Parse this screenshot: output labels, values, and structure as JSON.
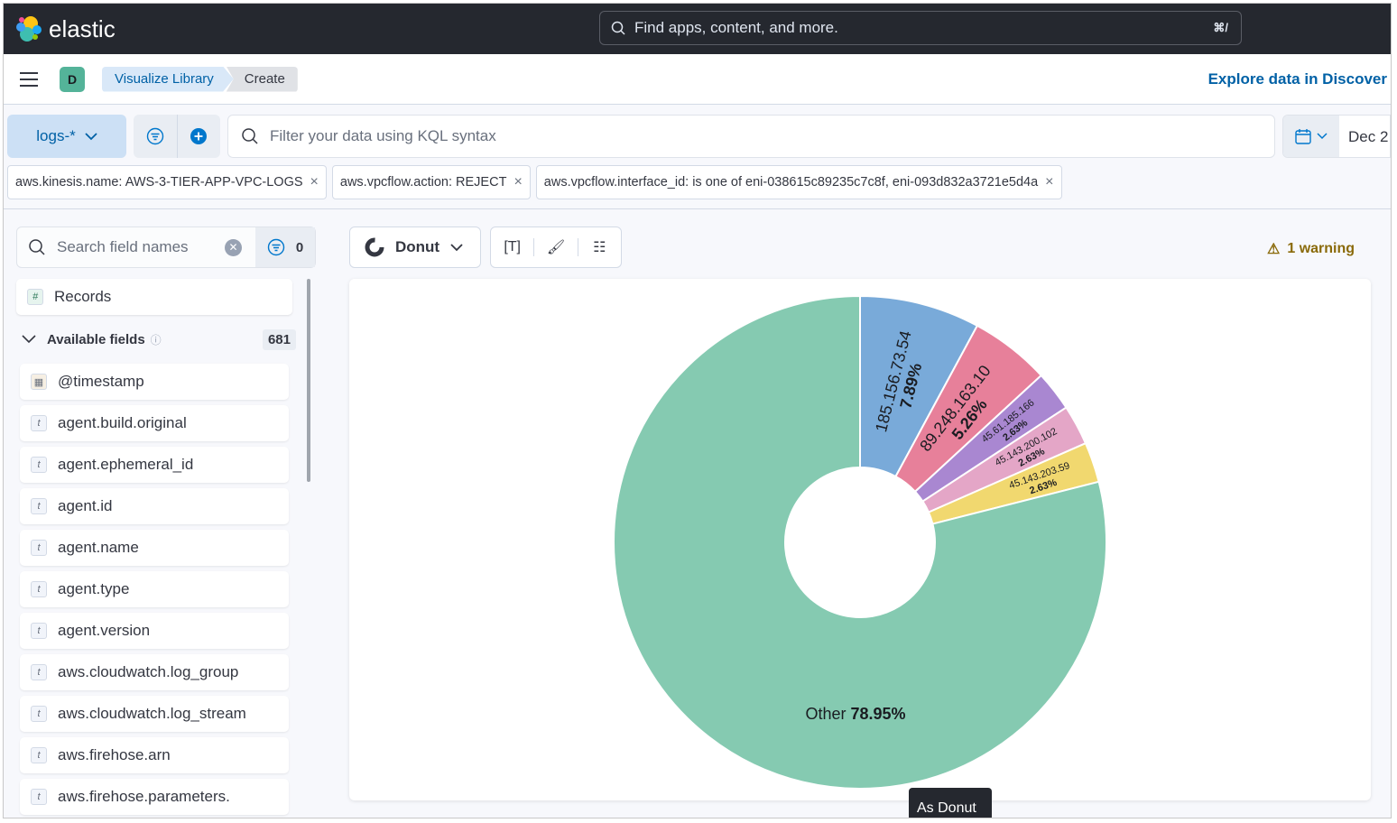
{
  "header": {
    "logo_text": "elastic",
    "search_placeholder": "Find apps, content, and more.",
    "shortcut": "⌘/"
  },
  "nav": {
    "avatar": "D",
    "breadcrumbs": [
      "Visualize Library",
      "Create"
    ],
    "explore": "Explore data in Discover"
  },
  "query": {
    "data_view": "logs-*",
    "kql_placeholder": "Filter your data using KQL syntax",
    "date": "Dec 2"
  },
  "filters": [
    "aws.kinesis.name: AWS-3-TIER-APP-VPC-LOGS",
    "aws.vpcflow.action: REJECT",
    "aws.vpcflow.interface_id: is one of eni-038615c89235c7c8f, eni-093d832a3721e5d4a"
  ],
  "sidebar": {
    "search_placeholder": "Search field names",
    "filter_count": "0",
    "records": "Records",
    "available_label": "Available fields",
    "available_count": "681",
    "fields": [
      {
        "name": "@timestamp",
        "type": "date"
      },
      {
        "name": "agent.build.original",
        "type": "t"
      },
      {
        "name": "agent.ephemeral_id",
        "type": "t"
      },
      {
        "name": "agent.id",
        "type": "t"
      },
      {
        "name": "agent.name",
        "type": "t"
      },
      {
        "name": "agent.type",
        "type": "t"
      },
      {
        "name": "agent.version",
        "type": "t"
      },
      {
        "name": "aws.cloudwatch.log_group",
        "type": "t"
      },
      {
        "name": "aws.cloudwatch.log_stream",
        "type": "t"
      },
      {
        "name": "aws.firehose.arn",
        "type": "t"
      },
      {
        "name": "aws.firehose.parameters.",
        "type": "t"
      }
    ]
  },
  "toolbar": {
    "chart_type": "Donut",
    "warning": "1 warning"
  },
  "tooltip": "As Donut",
  "chart_data": {
    "type": "pie",
    "donut": true,
    "slices": [
      {
        "label": "185.156.73.54",
        "percent": "7.89%",
        "value": 7.89,
        "color": "#79aad9"
      },
      {
        "label": "89.248.163.10",
        "percent": "5.26%",
        "value": 5.26,
        "color": "#e7809a"
      },
      {
        "label": "45.61.185.166",
        "percent": "2.63%",
        "value": 2.63,
        "color": "#a987d1"
      },
      {
        "label": "45.143.200.102",
        "percent": "2.63%",
        "value": 2.63,
        "color": "#e4a6c7"
      },
      {
        "label": "45.143.203.59",
        "percent": "2.63%",
        "value": 2.63,
        "color": "#f1d86f"
      },
      {
        "label": "Other",
        "percent": "78.95%",
        "value": 78.95,
        "color": "#85cab1"
      }
    ]
  }
}
